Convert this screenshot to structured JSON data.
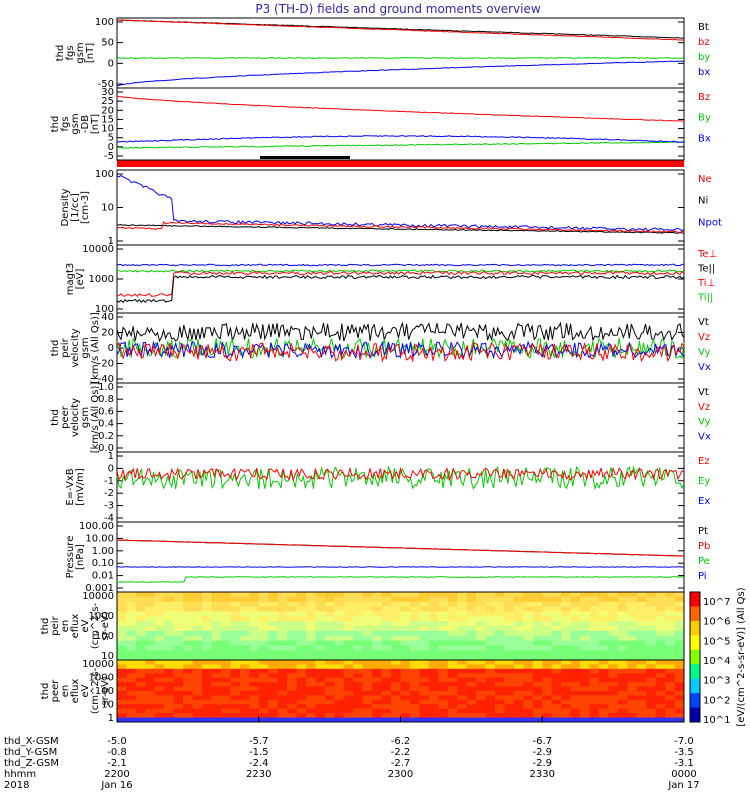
{
  "title": "P3 (TH-D) fields and ground moments overview",
  "colors": {
    "black": "#000000",
    "red": "#ff0000",
    "green": "#00cc00",
    "blue": "#0000ff",
    "axis": "#000000"
  },
  "chart_data": [
    {
      "id": "fgs",
      "type": "line",
      "ylabel": [
        "thd",
        "fgs",
        "gsm",
        "[nT]"
      ],
      "ylim": [
        -80,
        110
      ],
      "yticks": [
        100,
        50,
        0,
        -50
      ],
      "series": [
        {
          "name": "Bt",
          "color": "black"
        },
        {
          "name": "bz",
          "color": "red"
        },
        {
          "name": "by",
          "color": "green"
        },
        {
          "name": "bx",
          "color": "blue"
        }
      ]
    },
    {
      "id": "fgs_dsl",
      "type": "line",
      "ylabel": [
        "thd",
        "fgs",
        "gsm",
        "-DB",
        "[nT]"
      ],
      "ylim": [
        -8,
        30
      ],
      "yticks": [
        30,
        25,
        20,
        15,
        10,
        5,
        0,
        -5
      ],
      "series": [
        {
          "name": "Bz",
          "color": "red"
        },
        {
          "name": "By",
          "color": "green"
        },
        {
          "name": "Bx",
          "color": "blue"
        }
      ]
    },
    {
      "id": "density",
      "type": "line",
      "log": true,
      "ylabel": [
        "Density",
        "[1/cc]",
        "[cm-3]"
      ],
      "ylim": [
        0.3,
        200
      ],
      "yticks": [
        100,
        10,
        1
      ],
      "series": [
        {
          "name": "Ne",
          "color": "red"
        },
        {
          "name": "Ni",
          "color": "black"
        },
        {
          "name": "Npot",
          "color": "blue"
        }
      ]
    },
    {
      "id": "temp",
      "type": "line",
      "log": true,
      "ylabel": [
        "magt3",
        "[eV]"
      ],
      "ylim": [
        100,
        10000
      ],
      "yticks": [
        10000,
        1000,
        100
      ],
      "series": [
        {
          "name": "Te⊥",
          "color": "red"
        },
        {
          "name": "Te||",
          "color": "black"
        },
        {
          "name": "Ti⊥",
          "color": "red"
        },
        {
          "name": "Ti||",
          "color": "green"
        }
      ]
    },
    {
      "id": "peir_vel",
      "type": "line",
      "ylabel": [
        "thd",
        "peir",
        "velocity",
        "gsm",
        "[km/s (All Qs)]"
      ],
      "ylim": [
        -40,
        40
      ],
      "yticks": [
        40,
        20,
        0,
        -20,
        -40
      ],
      "series": [
        {
          "name": "Vt",
          "color": "black"
        },
        {
          "name": "Vz",
          "color": "red"
        },
        {
          "name": "Vy",
          "color": "green"
        },
        {
          "name": "Vx",
          "color": "blue"
        }
      ]
    },
    {
      "id": "peer_vel",
      "type": "line",
      "ylabel": [
        "thd",
        "peer",
        "velocity",
        "gsm",
        "[km/s (All Qs)]"
      ],
      "ylim": [
        0,
        1
      ],
      "yticks": [
        "1.0",
        "0.8",
        "0.6",
        "0.4",
        "0.2",
        "0.0"
      ],
      "series": [
        {
          "name": "Vt",
          "color": "black"
        },
        {
          "name": "Vz",
          "color": "red"
        },
        {
          "name": "Vy",
          "color": "green"
        },
        {
          "name": "Vx",
          "color": "blue"
        }
      ]
    },
    {
      "id": "efield",
      "type": "line",
      "ylabel": [
        "E=-VxB",
        "[mV/m]"
      ],
      "ylim": [
        -4,
        1.5
      ],
      "yticks": [
        1,
        0,
        -1,
        -2,
        -3,
        -4
      ],
      "series": [
        {
          "name": "Ez",
          "color": "red"
        },
        {
          "name": "Ey",
          "color": "green"
        },
        {
          "name": "Ex",
          "color": "blue"
        }
      ]
    },
    {
      "id": "pressure",
      "type": "line",
      "log": true,
      "ylabel": [
        "Pressure",
        "[nPa]"
      ],
      "ylim": [
        0.001,
        100
      ],
      "yticks": [
        "100.00",
        "10.00",
        "1.00",
        "0.10",
        "0.01",
        "0.001"
      ],
      "series": [
        {
          "name": "Pt",
          "color": "black"
        },
        {
          "name": "Pb",
          "color": "red"
        },
        {
          "name": "Pe",
          "color": "green"
        },
        {
          "name": "Pi",
          "color": "blue"
        }
      ]
    },
    {
      "id": "peir_en",
      "type": "heatmap",
      "ylabel": [
        "thd",
        "peir",
        "en",
        "eflux",
        "eV",
        "(cm^2-s-",
        "sr-eV)"
      ],
      "yticks": [
        10000,
        1000,
        100,
        10
      ]
    },
    {
      "id": "peer_en",
      "type": "heatmap",
      "ylabel": [
        "thd",
        "peer",
        "en",
        "eflux",
        "eV",
        "(cm^2-s-",
        "sr-eV)"
      ],
      "yticks": [
        10000,
        1000,
        100,
        10,
        1
      ]
    }
  ],
  "colorbar": {
    "label": "[eV/(cm^2-s-sr-eV)] (All Qs)",
    "ticks": [
      "10^7",
      "10^6",
      "10^5",
      "10^4",
      "10^3",
      "10^2",
      "10^1"
    ]
  },
  "xaxis": {
    "ticks": [
      "2200",
      "2230",
      "2300",
      "2330",
      "0000"
    ],
    "rows": [
      {
        "label": "thd_X-GSM",
        "values": [
          "-5.0",
          "-5.7",
          "-6.2",
          "-6.7",
          "-7.0"
        ]
      },
      {
        "label": "thd_Y-GSM",
        "values": [
          "-0.8",
          "-1.5",
          "-2.2",
          "-2.9",
          "-3.5"
        ]
      },
      {
        "label": "thd_Z-GSM",
        "values": [
          "-2.1",
          "-2.4",
          "-2.7",
          "-2.9",
          "-3.1"
        ]
      },
      {
        "label": "hhmm",
        "values": [
          "2200",
          "2230",
          "2300",
          "2330",
          "0000"
        ]
      }
    ],
    "date_row": {
      "label": "2018",
      "values": [
        "Jan 16",
        "",
        "",
        "",
        "Jan 17"
      ]
    }
  }
}
